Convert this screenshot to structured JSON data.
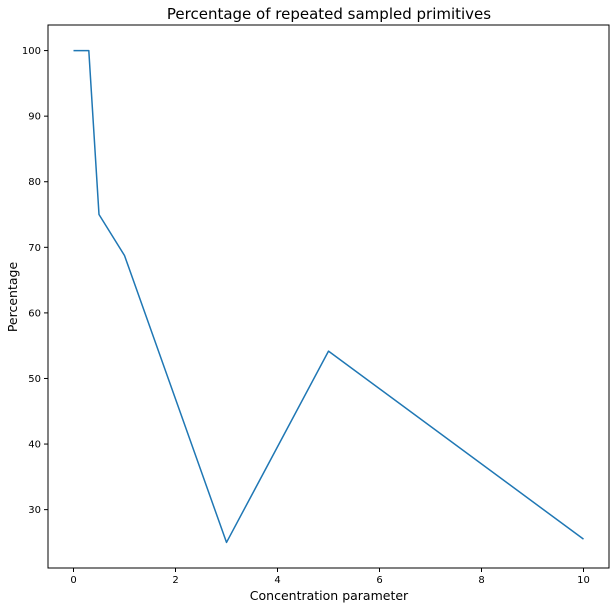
{
  "chart_data": {
    "type": "line",
    "title": "Percentage of repeated sampled primitives",
    "xlabel": "Concentration parameter",
    "ylabel": "Percentage",
    "xlim": [
      -0.5,
      10.5
    ],
    "ylim": [
      21.1,
      103.9
    ],
    "xticks": [
      0,
      2,
      4,
      6,
      8,
      10
    ],
    "yticks": [
      30,
      40,
      50,
      60,
      70,
      80,
      90,
      100
    ],
    "grid": false,
    "series": [
      {
        "color": "#1f77b4",
        "x": [
          0,
          0.3,
          0.5,
          1,
          3,
          5,
          10
        ],
        "y": [
          100,
          100,
          75,
          68.75,
          25,
          54.17,
          25.5
        ]
      }
    ]
  }
}
